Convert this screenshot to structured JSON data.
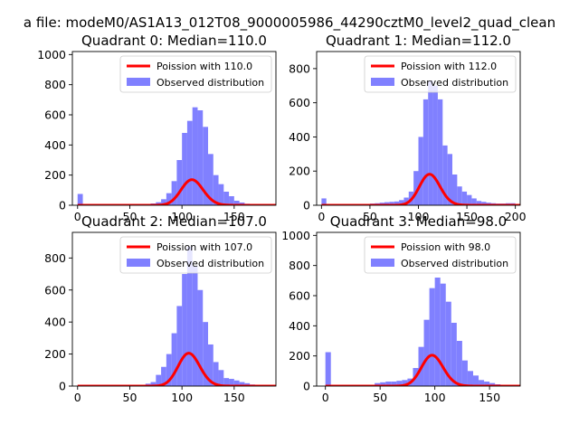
{
  "suptitle": "a file: modeM0/AS1A13_012T08_9000005986_44290cztM0_level2_quad_clean",
  "colors": {
    "fit_line": "#ff0000",
    "bars": "#8080ff"
  },
  "chart_data": [
    {
      "type": "bar",
      "title": "Quadrant 0: Median=110.0",
      "xlim": [
        -5,
        190
      ],
      "ylim": [
        0,
        1020
      ],
      "xticks": [
        0,
        50,
        100,
        150
      ],
      "yticks": [
        0,
        200,
        400,
        600,
        800,
        1000
      ],
      "legend_position": "upper-right",
      "series": [
        {
          "name": "Poission with 110.0",
          "kind": "line",
          "mean": 110.0
        },
        {
          "name": "Observed distribution",
          "kind": "histogram",
          "bins": [
            [
              0,
              75
            ],
            [
              5,
              3
            ],
            [
              10,
              2
            ],
            [
              15,
              2
            ],
            [
              20,
              2
            ],
            [
              25,
              2
            ],
            [
              30,
              2
            ],
            [
              35,
              2
            ],
            [
              40,
              2
            ],
            [
              45,
              2
            ],
            [
              50,
              3
            ],
            [
              55,
              3
            ],
            [
              60,
              3
            ],
            [
              65,
              8
            ],
            [
              70,
              12
            ],
            [
              75,
              20
            ],
            [
              80,
              40
            ],
            [
              85,
              80
            ],
            [
              90,
              160
            ],
            [
              95,
              300
            ],
            [
              100,
              480
            ],
            [
              105,
              560
            ],
            [
              110,
              650
            ],
            [
              115,
              630
            ],
            [
              120,
              520
            ],
            [
              125,
              340
            ],
            [
              130,
              200
            ],
            [
              135,
              140
            ],
            [
              140,
              90
            ],
            [
              145,
              60
            ],
            [
              150,
              30
            ],
            [
              155,
              18
            ],
            [
              160,
              10
            ],
            [
              165,
              6
            ],
            [
              170,
              4
            ],
            [
              175,
              3
            ],
            [
              180,
              2
            ]
          ]
        }
      ]
    },
    {
      "type": "bar",
      "title": "Quadrant 1: Median=112.0",
      "xlim": [
        -5,
        205
      ],
      "ylim": [
        0,
        900
      ],
      "xticks": [
        0,
        50,
        100,
        150,
        200
      ],
      "yticks": [
        0,
        200,
        400,
        600,
        800
      ],
      "legend_position": "upper-right",
      "series": [
        {
          "name": "Poission with 112.0",
          "kind": "line",
          "mean": 112.0
        },
        {
          "name": "Observed distribution",
          "kind": "histogram",
          "bins": [
            [
              0,
              40
            ],
            [
              5,
              3
            ],
            [
              10,
              2
            ],
            [
              15,
              2
            ],
            [
              20,
              2
            ],
            [
              25,
              2
            ],
            [
              30,
              2
            ],
            [
              35,
              2
            ],
            [
              40,
              2
            ],
            [
              45,
              3
            ],
            [
              50,
              10
            ],
            [
              55,
              12
            ],
            [
              60,
              15
            ],
            [
              65,
              18
            ],
            [
              70,
              20
            ],
            [
              75,
              22
            ],
            [
              80,
              30
            ],
            [
              85,
              45
            ],
            [
              90,
              80
            ],
            [
              95,
              200
            ],
            [
              100,
              400
            ],
            [
              105,
              620
            ],
            [
              110,
              730
            ],
            [
              115,
              700
            ],
            [
              120,
              620
            ],
            [
              125,
              350
            ],
            [
              130,
              300
            ],
            [
              135,
              180
            ],
            [
              140,
              110
            ],
            [
              145,
              80
            ],
            [
              150,
              60
            ],
            [
              155,
              40
            ],
            [
              160,
              25
            ],
            [
              165,
              20
            ],
            [
              170,
              15
            ],
            [
              175,
              12
            ],
            [
              180,
              10
            ],
            [
              185,
              10
            ],
            [
              190,
              12
            ],
            [
              195,
              12
            ]
          ]
        }
      ]
    },
    {
      "type": "bar",
      "title": "Quadrant 2: Median=107.0",
      "xlim": [
        -5,
        190
      ],
      "ylim": [
        0,
        960
      ],
      "xticks": [
        0,
        50,
        100,
        150
      ],
      "yticks": [
        0,
        200,
        400,
        600,
        800
      ],
      "legend_position": "upper-right",
      "series": [
        {
          "name": "Poission with 107.0",
          "kind": "line",
          "mean": 107.0
        },
        {
          "name": "Observed distribution",
          "kind": "histogram",
          "bins": [
            [
              0,
              5
            ],
            [
              5,
              2
            ],
            [
              10,
              2
            ],
            [
              15,
              2
            ],
            [
              20,
              2
            ],
            [
              25,
              2
            ],
            [
              30,
              2
            ],
            [
              35,
              2
            ],
            [
              40,
              2
            ],
            [
              45,
              2
            ],
            [
              50,
              3
            ],
            [
              55,
              5
            ],
            [
              60,
              8
            ],
            [
              65,
              15
            ],
            [
              70,
              25
            ],
            [
              75,
              70
            ],
            [
              80,
              120
            ],
            [
              85,
              200
            ],
            [
              90,
              330
            ],
            [
              95,
              500
            ],
            [
              100,
              700
            ],
            [
              105,
              870
            ],
            [
              110,
              750
            ],
            [
              115,
              600
            ],
            [
              120,
              400
            ],
            [
              125,
              260
            ],
            [
              130,
              150
            ],
            [
              135,
              100
            ],
            [
              140,
              50
            ],
            [
              145,
              45
            ],
            [
              150,
              35
            ],
            [
              155,
              25
            ],
            [
              160,
              18
            ],
            [
              165,
              10
            ],
            [
              170,
              6
            ],
            [
              175,
              4
            ],
            [
              180,
              3
            ]
          ]
        }
      ]
    },
    {
      "type": "bar",
      "title": "Quadrant 3: Median=98.0",
      "xlim": [
        -8,
        178
      ],
      "ylim": [
        0,
        1020
      ],
      "xticks": [
        0,
        50,
        100,
        150
      ],
      "yticks": [
        0,
        200,
        400,
        600,
        800,
        1000
      ],
      "legend_position": "upper-right",
      "series": [
        {
          "name": "Poission with 98.0",
          "kind": "line",
          "mean": 98.0
        },
        {
          "name": "Observed distribution",
          "kind": "histogram",
          "bins": [
            [
              0,
              225
            ],
            [
              5,
              5
            ],
            [
              10,
              3
            ],
            [
              15,
              3
            ],
            [
              20,
              3
            ],
            [
              25,
              3
            ],
            [
              30,
              3
            ],
            [
              35,
              3
            ],
            [
              40,
              5
            ],
            [
              45,
              20
            ],
            [
              50,
              25
            ],
            [
              55,
              30
            ],
            [
              60,
              30
            ],
            [
              65,
              35
            ],
            [
              70,
              40
            ],
            [
              75,
              50
            ],
            [
              80,
              120
            ],
            [
              85,
              260
            ],
            [
              90,
              440
            ],
            [
              95,
              650
            ],
            [
              100,
              720
            ],
            [
              105,
              680
            ],
            [
              110,
              560
            ],
            [
              115,
              420
            ],
            [
              120,
              300
            ],
            [
              125,
              170
            ],
            [
              130,
              100
            ],
            [
              135,
              70
            ],
            [
              140,
              40
            ],
            [
              145,
              30
            ],
            [
              150,
              20
            ],
            [
              155,
              12
            ],
            [
              160,
              8
            ]
          ]
        }
      ]
    }
  ]
}
